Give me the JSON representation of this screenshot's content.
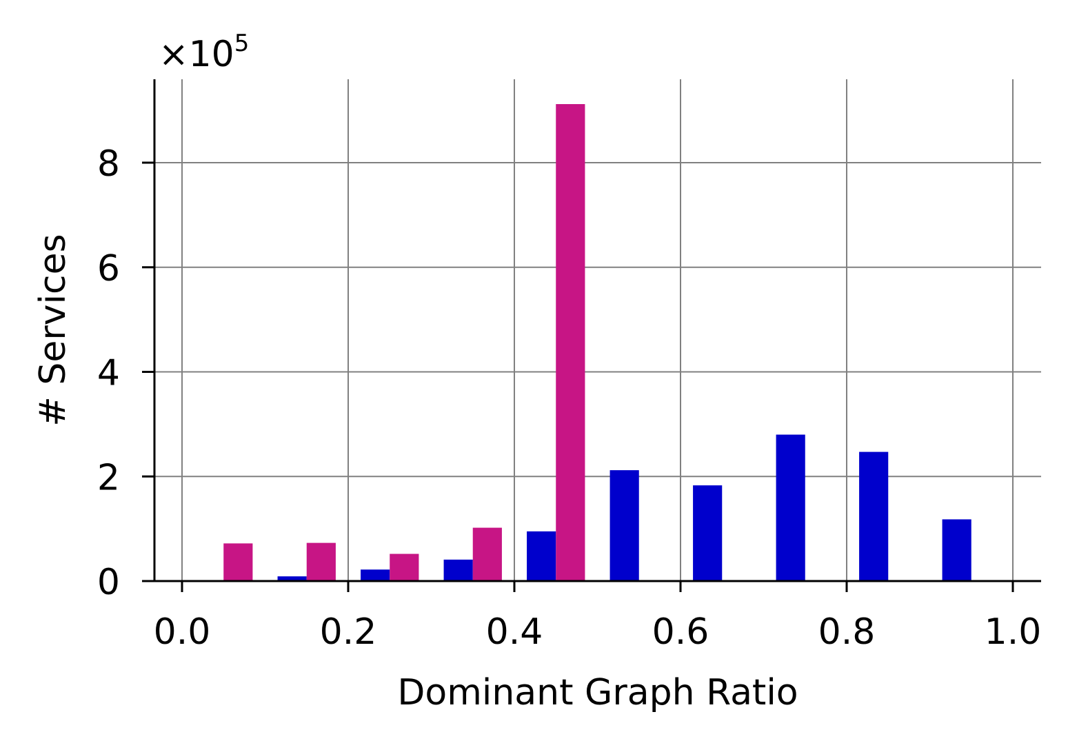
{
  "chart_data": {
    "type": "bar",
    "xlabel": "Dominant Graph Ratio",
    "ylabel": "# Services",
    "y_multiplier": {
      "base": "×10",
      "exponent": "5"
    },
    "xlim": [
      -0.05,
      1.03
    ],
    "ylim": [
      0,
      9.6
    ],
    "xticks": [
      0.0,
      0.2,
      0.4,
      0.6,
      0.8,
      1.0
    ],
    "xtick_labels": [
      "0.0",
      "0.2",
      "0.4",
      "0.6",
      "0.8",
      "1.0"
    ],
    "yticks": [
      0,
      2,
      4,
      6,
      8
    ],
    "ytick_labels": [
      "0",
      "2",
      "4",
      "6",
      "8"
    ],
    "grid": true,
    "bin_width": 0.1,
    "bin_starts": [
      0.0,
      0.1,
      0.2,
      0.3,
      0.4,
      0.5,
      0.6,
      0.7,
      0.8,
      0.9
    ],
    "series": [
      {
        "values": [
          0.0,
          0.09,
          0.22,
          0.41,
          0.95,
          2.12,
          1.83,
          2.8,
          2.47,
          1.18
        ],
        "color": "#0000cc"
      },
      {
        "values": [
          0.72,
          0.73,
          0.52,
          1.02,
          9.12,
          0.0,
          0.0,
          0.0,
          0.0,
          0.0
        ],
        "color": "#c71585"
      }
    ]
  }
}
